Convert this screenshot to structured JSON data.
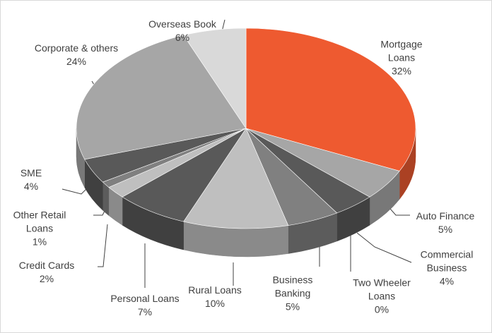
{
  "chart_data": {
    "type": "pie3d",
    "categories": [
      "Mortgage Loans",
      "Auto Finance",
      "Commercial Business",
      "Two Wheeler Loans",
      "Business Banking",
      "Rural Loans",
      "Personal Loans",
      "Credit Cards",
      "Other Retail Loans",
      "SME",
      "Corporate & others",
      "Overseas Book"
    ],
    "values": [
      32,
      5,
      4,
      0,
      5,
      10,
      7,
      2,
      1,
      4,
      24,
      6
    ],
    "value_labels": [
      "32%",
      "5%",
      "4%",
      "0%",
      "5%",
      "10%",
      "7%",
      "2%",
      "1%",
      "4%",
      "24%",
      "6%"
    ],
    "colors": [
      "#ee5a30",
      "#a6a6a6",
      "#595959",
      "#404040",
      "#808080",
      "#bfbfbf",
      "#595959",
      "#bfbfbf",
      "#808080",
      "#595959",
      "#a6a6a6",
      "#d9d9d9"
    ]
  }
}
